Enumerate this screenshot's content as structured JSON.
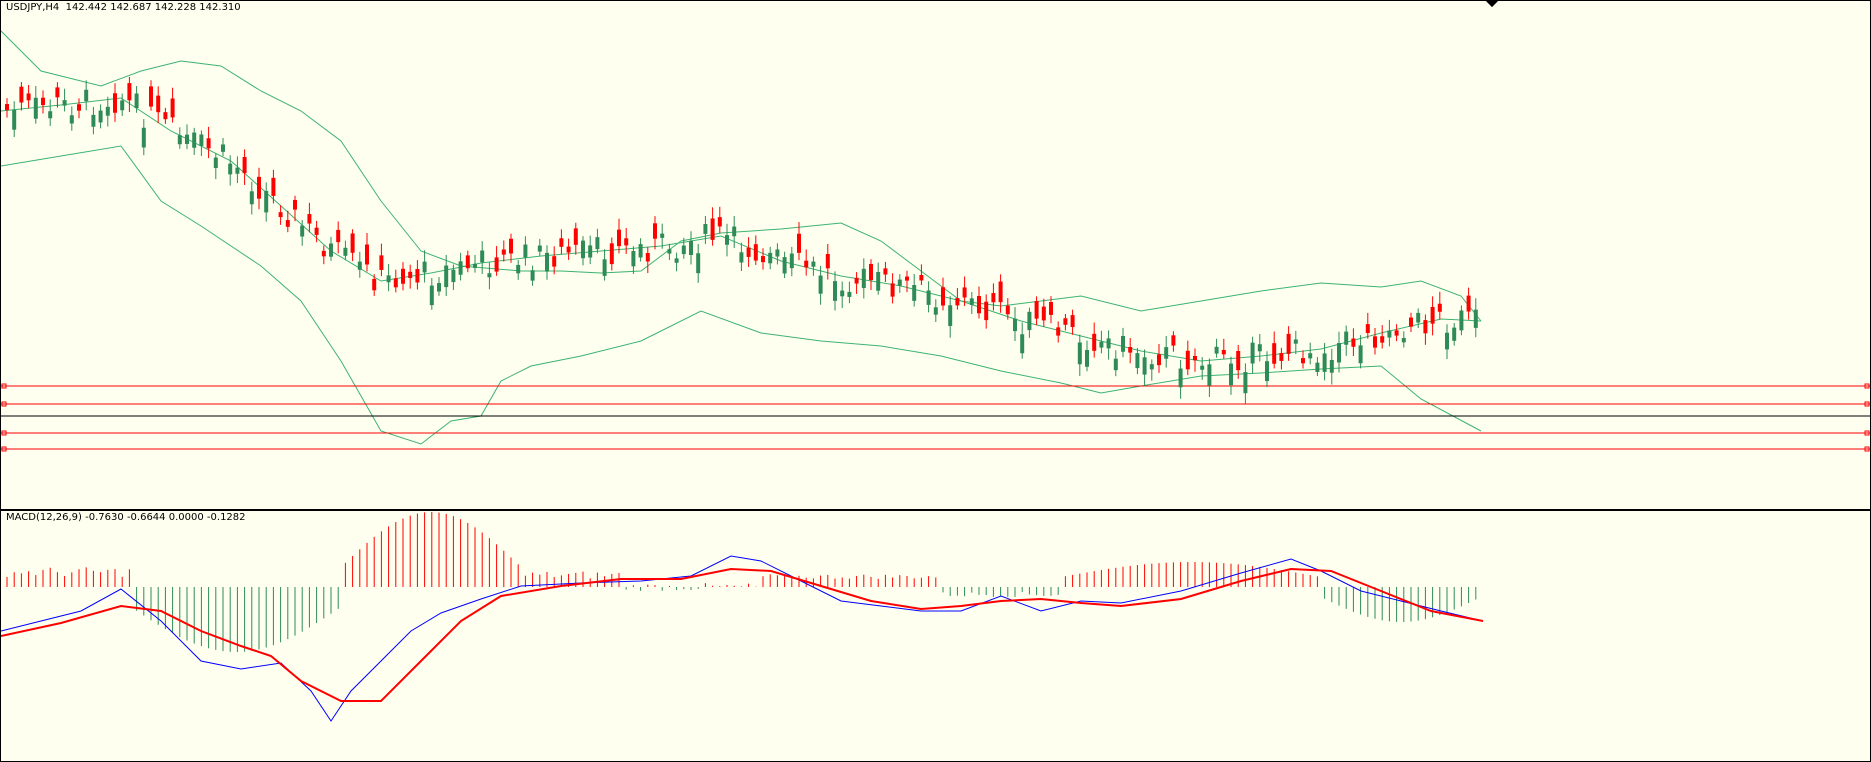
{
  "chart": {
    "symbol_timeframe": "USDJPY,H4",
    "ohlc": [
      "142.442",
      "142.687",
      "142.228",
      "142.310"
    ],
    "colors": {
      "background": "#fffff0",
      "bull": "#ff0000",
      "bear": "#2e8b57",
      "bands": "#3cb371",
      "hline": "#ff0000",
      "price_line": "#000000"
    }
  },
  "macd": {
    "label": "MACD(12,26,9)",
    "values": [
      "-0.7630",
      "-0.6644",
      "0.0000",
      "-0.1282"
    ],
    "colors": {
      "main": "#0000ff",
      "signal": "#ff0000",
      "hist_pos": "#ff0000",
      "hist_neg": "#2e8b57"
    }
  },
  "icons": {
    "cursor": "diamond-cursor-icon"
  }
}
